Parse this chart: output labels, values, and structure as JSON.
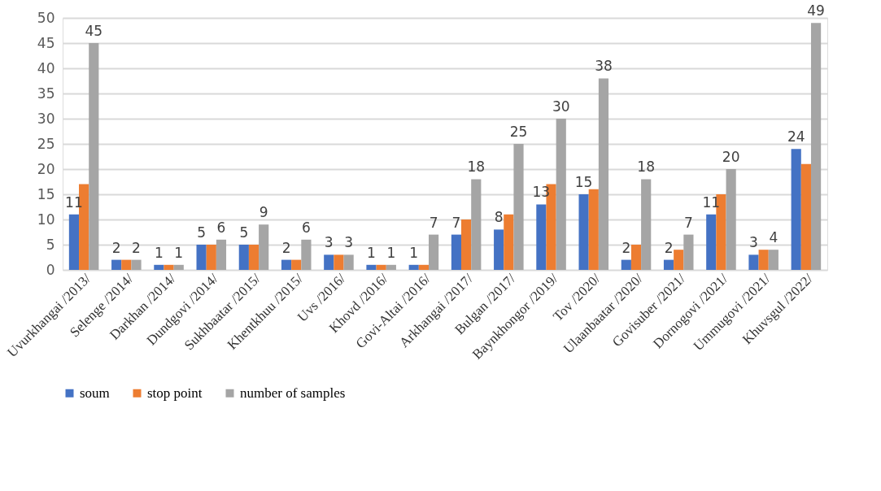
{
  "chart_data": {
    "type": "bar",
    "categories": [
      "Uvurkhangai /2013/",
      "Selenge /2014/",
      "Darkhan /2014/",
      "Dundgovi /2014/",
      "Sukhbaatar /2015/",
      "Khentkhuu /2015/",
      "Uvs /2016/",
      "Khovd /2016/",
      "Govi-Altai /2016/",
      "Arkhangai /2017/",
      "Bulgan /2017/",
      "Baynkhongor /2019/",
      "Tov /2020/",
      "Ulaanbaatar /2020/",
      "Govisuber /2021/",
      "Dornogovi /2021/",
      "Ummugovi /2021/",
      "Khuvsgul /2022/"
    ],
    "series": [
      {
        "name": "soum",
        "color": "#4472c4",
        "values": [
          11,
          2,
          1,
          5,
          5,
          2,
          3,
          1,
          1,
          7,
          8,
          13,
          15,
          2,
          2,
          11,
          3,
          24
        ],
        "value_labels": [
          "11",
          "2",
          "1",
          "5",
          "5",
          "2",
          "3",
          "1",
          "1",
          "7",
          "8",
          "13",
          "15",
          "2",
          "2",
          "11",
          "3",
          "24"
        ]
      },
      {
        "name": "stop point",
        "color": "#ed7d31",
        "values": [
          17,
          2,
          1,
          5,
          5,
          2,
          3,
          1,
          1,
          10,
          11,
          17,
          16,
          5,
          4,
          15,
          4,
          21
        ]
      },
      {
        "name": "number of samples",
        "color": "#a5a5a5",
        "values": [
          45,
          2,
          1,
          6,
          9,
          6,
          3,
          1,
          7,
          18,
          25,
          30,
          38,
          18,
          7,
          20,
          4,
          49
        ],
        "value_labels": [
          "45",
          "2",
          "1",
          "6",
          "9",
          "6",
          "3",
          "1",
          "7",
          "18",
          "25",
          "30",
          "38",
          "18",
          "7",
          "20",
          "4",
          "49"
        ]
      }
    ],
    "ylim": [
      0,
      50
    ],
    "yticks": [
      0,
      5,
      10,
      15,
      20,
      25,
      30,
      35,
      40,
      45,
      50
    ],
    "grid": "y",
    "legend": "bottom"
  }
}
